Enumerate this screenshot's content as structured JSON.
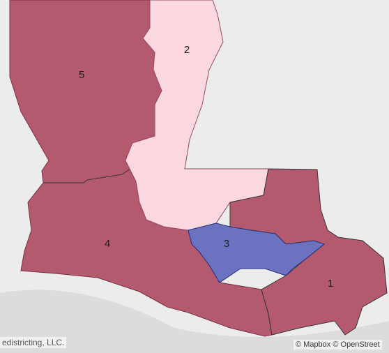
{
  "map": {
    "districts": [
      {
        "label": "1"
      },
      {
        "label": "2"
      },
      {
        "label": "3"
      },
      {
        "label": "4"
      },
      {
        "label": "5"
      }
    ],
    "attribution_left": "edistricting, LLC.",
    "attribution_right": "© Mapbox © OpenStreet"
  }
}
